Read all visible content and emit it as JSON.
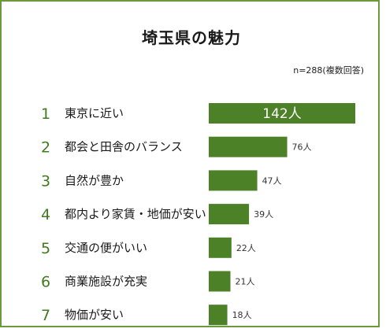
{
  "colors": {
    "bar": "#4c8128",
    "rank": "#3f7a1e",
    "border": "#6a9a3a"
  },
  "chart_data": {
    "type": "bar",
    "orientation": "horizontal",
    "title": "埼玉県の魅力",
    "note": "n=288(複数回答)",
    "ranks": [
      "1",
      "2",
      "3",
      "4",
      "5",
      "6",
      "7"
    ],
    "categories": [
      "東京に近い",
      "都会と田舎のバランス",
      "自然が豊か",
      "都内より家賃・地価が安い",
      "交通の便がいい",
      "商業施設が充実",
      "物価が安い"
    ],
    "values": [
      142,
      76,
      47,
      39,
      22,
      21,
      18
    ],
    "value_labels": [
      "142人",
      "76人",
      "47人",
      "39人",
      "22人",
      "21人",
      "18人"
    ],
    "grid": false,
    "legend": "none"
  }
}
